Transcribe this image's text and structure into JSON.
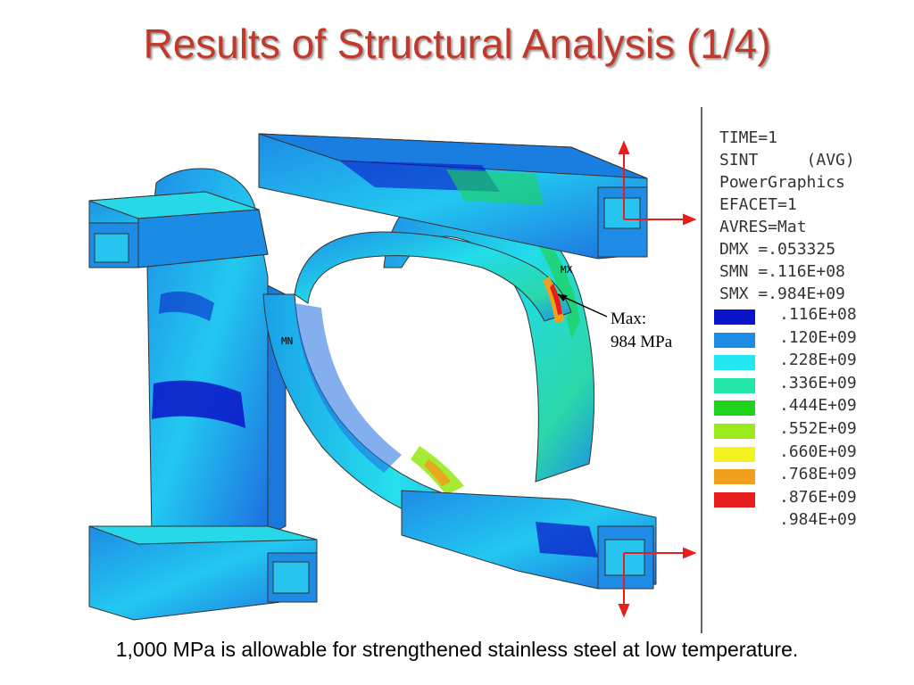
{
  "slide": {
    "title": "Results of Structural Analysis (1/4)",
    "footer": "1,000 MPa is allowable for strengthened stainless steel at low temperature."
  },
  "legend": {
    "header_lines": [
      "TIME=1",
      "SINT     (AVG)",
      "PowerGraphics",
      "EFACET=1",
      "AVRES=Mat",
      "DMX =.053325",
      "SMN =.116E+08",
      "SMX =.984E+09"
    ],
    "contour_levels": [
      {
        "label": ".116E+08",
        "color": "#0a14c8"
      },
      {
        "label": ".120E+09",
        "color": "#1e8ce6"
      },
      {
        "label": ".228E+09",
        "color": "#22e6f0"
      },
      {
        "label": ".336E+09",
        "color": "#22e6a8"
      },
      {
        "label": ".444E+09",
        "color": "#1ed21e"
      },
      {
        "label": ".552E+09",
        "color": "#9aea1e"
      },
      {
        "label": ".660E+09",
        "color": "#f2f21e"
      },
      {
        "label": ".768E+09",
        "color": "#f0a01e"
      },
      {
        "label": ".876E+09",
        "color": "#e61e1e"
      },
      {
        "label": ".984E+09",
        "color": ""
      }
    ]
  },
  "model": {
    "max_marker": "MX",
    "min_marker": "MN",
    "callout_line1": "Max:",
    "callout_line2": "984 MPa"
  }
}
